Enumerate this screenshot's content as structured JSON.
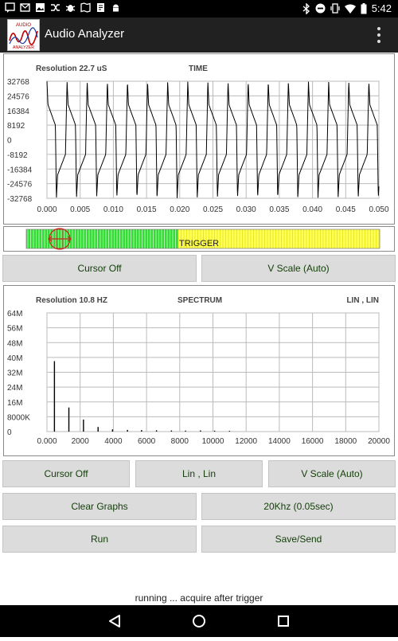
{
  "status_bar": {
    "time": "5:42",
    "left_icons": [
      "messaging-icon",
      "mail-icon",
      "image-icon",
      "shuffle-icon",
      "debug-icon",
      "maps-icon",
      "notes-icon",
      "android-icon"
    ],
    "right_icons": [
      "bluetooth-icon",
      "do-not-disturb-icon",
      "vibrate-icon",
      "wifi-icon",
      "battery-icon"
    ]
  },
  "app_bar": {
    "title": "Audio Analyzer",
    "logo_text_top": "AUDIO",
    "logo_text_bottom": "ANALYZER"
  },
  "time_graph": {
    "resolution": "Resolution 22.7 uS",
    "title": "TIME",
    "y_ticks": [
      "32768",
      "24576",
      "16384",
      "8192",
      "0",
      "-8192",
      "-16384",
      "-24576",
      "-32768"
    ],
    "x_ticks": [
      "0.000",
      "0.005",
      "0.010",
      "0.015",
      "0.020",
      "0.025",
      "0.030",
      "0.035",
      "0.040",
      "0.045",
      "0.050"
    ]
  },
  "trigger": {
    "label": "TRIGGER",
    "level": 0.43
  },
  "time_controls": {
    "cursor_label": "Cursor Off",
    "vscale_label": "V Scale (Auto)"
  },
  "spectrum_graph": {
    "resolution": "Resolution 10.8 HZ",
    "title": "SPECTRUM",
    "scale_mode": "LIN , LIN",
    "y_ticks": [
      "64M",
      "56M",
      "48M",
      "40M",
      "32M",
      "24M",
      "16M",
      "8000K",
      "0"
    ],
    "x_ticks": [
      "0.000",
      "2000",
      "4000",
      "6000",
      "8000",
      "10000",
      "12000",
      "14000",
      "16000",
      "18000",
      "20000"
    ]
  },
  "chart_data": [
    {
      "type": "line",
      "title": "TIME",
      "xlim": [
        0.0,
        0.05
      ],
      "ylim": [
        -32768,
        32768
      ],
      "frequency_hz": 330,
      "amplitude": 32700,
      "grid": true
    },
    {
      "type": "bar",
      "title": "SPECTRUM",
      "xlim": [
        0,
        20000
      ],
      "ylim": [
        0,
        64000000
      ],
      "peaks": [
        {
          "freq": 450,
          "value": 38000000
        },
        {
          "freq": 1320,
          "value": 13000000
        },
        {
          "freq": 2200,
          "value": 6500000
        },
        {
          "freq": 3080,
          "value": 2500000
        },
        {
          "freq": 3950,
          "value": 1200000
        },
        {
          "freq": 4850,
          "value": 900000
        },
        {
          "freq": 5700,
          "value": 800000
        },
        {
          "freq": 6600,
          "value": 700000
        },
        {
          "freq": 7500,
          "value": 600000
        },
        {
          "freq": 8350,
          "value": 500000
        },
        {
          "freq": 9250,
          "value": 600000
        },
        {
          "freq": 10100,
          "value": 500000
        },
        {
          "freq": 11000,
          "value": 400000
        }
      ],
      "grid": true
    }
  ],
  "spectrum_controls": {
    "cursor_label": "Cursor Off",
    "scale_label": "Lin , Lin",
    "vscale_label": "V Scale (Auto)"
  },
  "actions": {
    "clear_label": "Clear Graphs",
    "rate_label": "20Khz (0.05sec)",
    "run_label": "Run",
    "save_label": "Save/Send"
  },
  "status_text": "running ... acquire after trigger",
  "nav": {
    "icons": [
      "back-icon",
      "home-icon",
      "recents-icon"
    ]
  },
  "colors": {
    "trigger_green": "#33dd33",
    "trigger_yellow": "#ffff55",
    "button_bg": "#dcdcdc",
    "button_text": "#14400a"
  }
}
